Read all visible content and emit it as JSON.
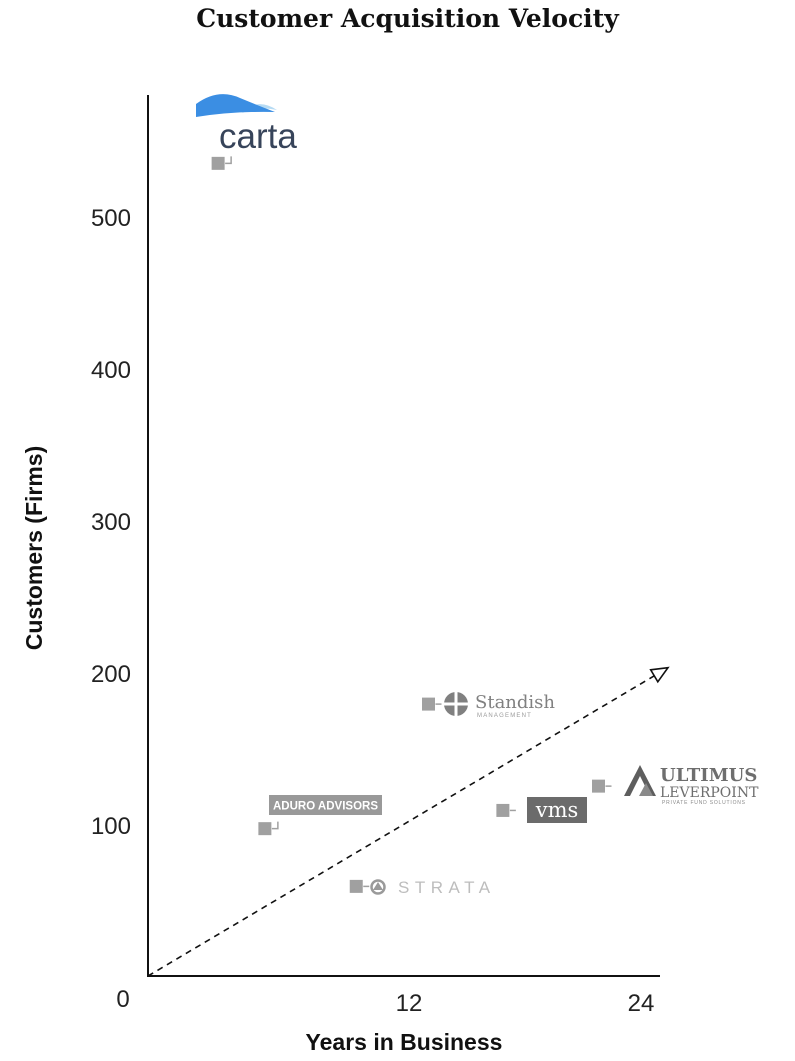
{
  "chart_data": {
    "type": "scatter",
    "title": "Customer Acquisition Velocity",
    "xlabel": "Years in Business",
    "ylabel": "Customers (Firms)",
    "xlim": [
      0,
      24
    ],
    "ylim": [
      0,
      580
    ],
    "x_ticks": [
      "0",
      "12",
      "24"
    ],
    "y_ticks": [
      "100",
      "200",
      "300",
      "400",
      "500"
    ],
    "points": [
      {
        "label": "carta",
        "x": 3.3,
        "y": 535
      },
      {
        "label": "Standish MANAGEMENT",
        "x": 13.2,
        "y": 179
      },
      {
        "label": "ADURO ADVISORS",
        "x": 5.5,
        "y": 97
      },
      {
        "label": "vms",
        "x": 16.7,
        "y": 109
      },
      {
        "label": "ULTIMUS LEVERPOINT PRIVATE FUND SOLUTIONS",
        "x": 21.2,
        "y": 125
      },
      {
        "label": "STRATA",
        "x": 9.8,
        "y": 59
      }
    ],
    "trend_arrow": {
      "style": "dashed",
      "from": [
        0,
        0
      ],
      "to": [
        24,
        203
      ]
    },
    "colors": {
      "marker": "#a0a0a0",
      "carta_blue": "#3b8ee3",
      "carta_light": "#b6dbf4",
      "carta_text": "#37445a",
      "aduro_bg": "#999999",
      "vms_bg": "#6b6b6b",
      "standish": "#808080",
      "ultimus": "#6e6e6e"
    }
  }
}
